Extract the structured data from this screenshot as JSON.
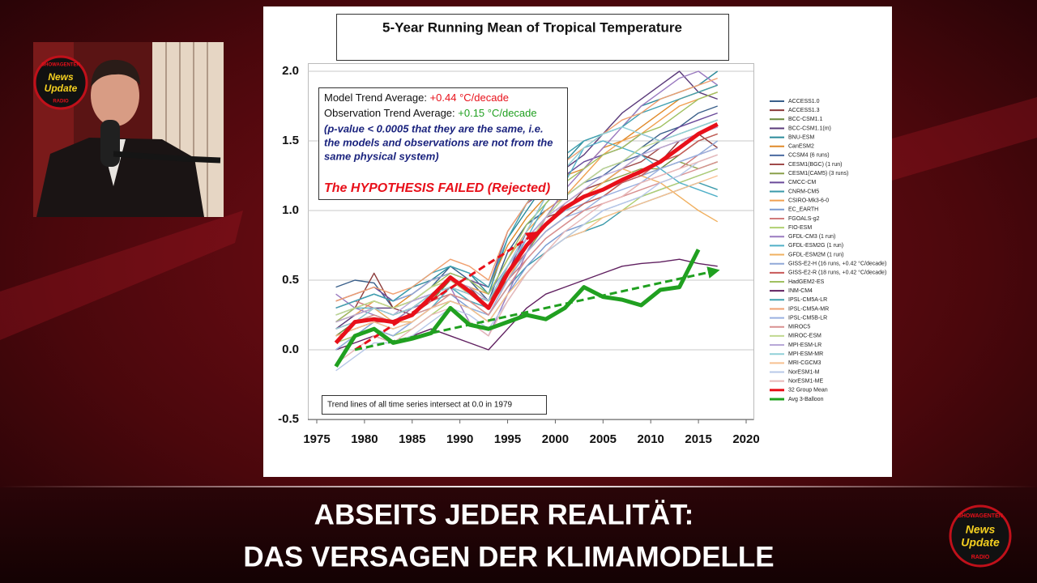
{
  "chart_data": {
    "type": "line",
    "title": "5-Year Running Mean of Tropical Temperature",
    "annotations": {
      "model_label": "Model Trend Average:",
      "model_value": "+0.44 °C/decade",
      "obs_label": "Observation Trend Average:",
      "obs_value": "+0.15 °C/decade",
      "note": [
        "(p-value < 0.0005 that they are the same, i.e.",
        "the models and observations are not from the",
        "same physical system)"
      ],
      "verdict": "The HYPOTHESIS FAILED (Rejected)",
      "footnote": "Trend lines of all time series intersect at 0.0 in 1979"
    },
    "xlim": [
      1975,
      2020
    ],
    "xticks": [
      1975,
      1980,
      1985,
      1990,
      1995,
      2000,
      2005,
      2010,
      2015,
      2020
    ],
    "ylim": [
      -0.5,
      2.0
    ],
    "yticks": [
      -0.5,
      {
        "value": 0,
        "label": "0.0"
      },
      0.5,
      {
        "value": 1,
        "label": "1.0"
      },
      1.5,
      {
        "value": 2,
        "label": "2.0"
      }
    ],
    "grid": true,
    "legend": "right",
    "x": [
      1977,
      1979,
      1981,
      1983,
      1985,
      1987,
      1989,
      1991,
      1993,
      1995,
      1997,
      1999,
      2001,
      2003,
      2005,
      2007,
      2009,
      2011,
      2013,
      2015,
      2017
    ],
    "series": [
      {
        "name": "ACCESS1.0",
        "color": "#3a5f8a",
        "values": [
          0.45,
          0.5,
          0.48,
          0.3,
          0.35,
          0.45,
          0.6,
          0.5,
          0.35,
          0.7,
          0.9,
          1.0,
          1.1,
          1.2,
          1.3,
          1.35,
          1.45,
          1.55,
          1.6,
          1.7,
          1.75
        ]
      },
      {
        "name": "ACCESS1.3",
        "color": "#8b3a3a",
        "values": [
          0.2,
          0.3,
          0.55,
          0.3,
          0.25,
          0.4,
          0.5,
          0.45,
          0.3,
          0.6,
          0.8,
          0.95,
          1.0,
          1.15,
          1.2,
          1.3,
          1.4,
          1.35,
          1.5,
          1.55,
          1.45
        ]
      },
      {
        "name": "BCC-CSM1.1",
        "color": "#6a8a3a",
        "values": [
          0.1,
          0.2,
          0.25,
          0.2,
          0.3,
          0.35,
          0.5,
          0.45,
          0.35,
          0.5,
          0.7,
          0.85,
          0.95,
          1.05,
          1.1,
          1.2,
          1.25,
          1.3,
          1.4,
          1.5,
          1.55
        ]
      },
      {
        "name": "BCC-CSM1.1(m)",
        "color": "#5a3a7a",
        "values": [
          0.15,
          0.25,
          0.3,
          0.3,
          0.35,
          0.4,
          0.45,
          0.35,
          0.3,
          0.55,
          0.85,
          1.1,
          1.3,
          1.4,
          1.55,
          1.7,
          1.8,
          1.9,
          2.0,
          1.85,
          1.8
        ]
      },
      {
        "name": "BNU-ESM",
        "color": "#2a8a9a",
        "values": [
          0.3,
          0.35,
          0.4,
          0.35,
          0.45,
          0.5,
          0.6,
          0.55,
          0.4,
          0.8,
          1.0,
          1.2,
          1.35,
          1.5,
          1.55,
          1.6,
          1.75,
          1.8,
          1.85,
          1.9,
          2.0
        ]
      },
      {
        "name": "CanESM2",
        "color": "#e08a2a",
        "values": [
          0.25,
          0.3,
          0.35,
          0.3,
          0.4,
          0.5,
          0.55,
          0.5,
          0.45,
          0.75,
          0.95,
          1.1,
          1.25,
          1.3,
          1.45,
          1.5,
          1.6,
          1.7,
          1.8,
          1.85,
          1.9
        ]
      },
      {
        "name": "CCSM4 (6 runs)",
        "color": "#4a6aa0",
        "values": [
          0.2,
          0.25,
          0.3,
          0.25,
          0.3,
          0.4,
          0.45,
          0.4,
          0.35,
          0.6,
          0.8,
          0.95,
          1.1,
          1.2,
          1.25,
          1.35,
          1.4,
          1.5,
          1.55,
          1.6,
          1.65
        ]
      },
      {
        "name": "CESM1(BGC) (1 run)",
        "color": "#a04a4a",
        "values": [
          0.15,
          0.2,
          0.3,
          0.25,
          0.3,
          0.4,
          0.5,
          0.4,
          0.35,
          0.55,
          0.75,
          0.9,
          1.05,
          1.15,
          1.2,
          1.3,
          1.35,
          1.45,
          1.5,
          1.55,
          1.6
        ]
      },
      {
        "name": "CESM1(CAM5) (3 runs)",
        "color": "#8aa04a",
        "values": [
          0.1,
          0.15,
          0.2,
          0.2,
          0.25,
          0.35,
          0.45,
          0.35,
          0.3,
          0.5,
          0.7,
          0.9,
          1.0,
          1.1,
          1.2,
          1.25,
          1.3,
          1.3,
          1.35,
          1.3,
          1.35
        ]
      },
      {
        "name": "CMCC-CM",
        "color": "#6a4a9a",
        "values": [
          0.35,
          0.4,
          0.45,
          0.35,
          0.4,
          0.5,
          0.55,
          0.5,
          0.45,
          0.85,
          1.05,
          1.15,
          1.25,
          1.35,
          1.4,
          1.45,
          1.55,
          1.5,
          1.6,
          1.65,
          1.7
        ]
      },
      {
        "name": "CNRM-CM5",
        "color": "#3a9aaa",
        "values": [
          0.0,
          0.1,
          0.15,
          0.1,
          0.2,
          0.3,
          0.35,
          0.3,
          0.25,
          0.45,
          0.6,
          0.7,
          0.8,
          0.85,
          0.9,
          1.0,
          1.05,
          1.1,
          1.15,
          1.2,
          1.15
        ]
      },
      {
        "name": "CSIRO-Mk3-6-0",
        "color": "#f0a050",
        "values": [
          0.2,
          0.25,
          0.35,
          0.3,
          0.35,
          0.45,
          0.5,
          0.45,
          0.4,
          0.65,
          0.85,
          1.0,
          1.1,
          1.25,
          1.4,
          1.5,
          1.55,
          1.65,
          1.75,
          1.8,
          1.85
        ]
      },
      {
        "name": "EC_EARTH",
        "color": "#7a9ad0",
        "values": [
          0.05,
          0.1,
          0.2,
          0.15,
          0.2,
          0.3,
          0.4,
          0.3,
          0.2,
          0.4,
          0.6,
          0.75,
          0.85,
          0.9,
          1.0,
          1.05,
          1.1,
          1.15,
          1.2,
          1.25,
          1.3
        ]
      },
      {
        "name": "FGOALS-g2",
        "color": "#d07a7a",
        "values": [
          0.3,
          0.35,
          0.3,
          0.25,
          0.3,
          0.35,
          0.4,
          0.35,
          0.3,
          0.5,
          0.65,
          0.8,
          0.9,
          1.0,
          1.05,
          1.1,
          1.2,
          1.25,
          1.3,
          1.4,
          1.45
        ]
      },
      {
        "name": "FIO-ESM",
        "color": "#b0d070",
        "values": [
          0.05,
          0.1,
          0.15,
          0.1,
          0.15,
          0.25,
          0.35,
          0.3,
          0.2,
          0.4,
          0.55,
          0.7,
          0.8,
          0.9,
          0.95,
          1.0,
          1.1,
          1.15,
          1.2,
          1.25,
          1.3
        ]
      },
      {
        "name": "GFDL-CM3 (1 run)",
        "color": "#9a7ac0",
        "values": [
          0.4,
          0.3,
          0.25,
          0.2,
          0.3,
          0.35,
          0.45,
          0.2,
          0.1,
          0.4,
          0.7,
          0.95,
          1.15,
          1.3,
          1.45,
          1.6,
          1.75,
          1.85,
          1.95,
          2.0,
          1.9
        ]
      },
      {
        "name": "GFDL-ESM2G (1 run)",
        "color": "#50b0c8",
        "values": [
          0.25,
          0.3,
          0.3,
          0.2,
          0.25,
          0.3,
          0.45,
          0.35,
          0.3,
          0.55,
          0.8,
          1.05,
          1.2,
          1.45,
          1.5,
          1.45,
          1.4,
          1.3,
          1.2,
          1.15,
          1.1
        ]
      },
      {
        "name": "GFDL-ESM2M (1 run)",
        "color": "#f0b060",
        "values": [
          0.2,
          0.25,
          0.3,
          0.2,
          0.2,
          0.3,
          0.4,
          0.35,
          0.25,
          0.5,
          0.75,
          0.9,
          1.0,
          1.1,
          1.2,
          1.3,
          1.25,
          1.2,
          1.1,
          1.0,
          0.92
        ]
      },
      {
        "name": "GISS-E2-H (16 runs, +0.42 °C/decade)",
        "color": "#90a8d8",
        "values": [
          0.3,
          0.35,
          0.4,
          0.35,
          0.4,
          0.5,
          0.55,
          0.5,
          0.4,
          0.6,
          0.8,
          0.9,
          1.0,
          1.05,
          1.15,
          1.2,
          1.25,
          1.3,
          1.35,
          1.4,
          1.5
        ]
      },
      {
        "name": "GISS-E2-R (18 runs, +0.42 °C/decade)",
        "color": "#c85858",
        "values": [
          0.1,
          0.15,
          0.2,
          0.2,
          0.25,
          0.35,
          0.45,
          0.4,
          0.35,
          0.55,
          0.7,
          0.85,
          0.95,
          1.05,
          1.1,
          1.2,
          1.25,
          1.35,
          1.4,
          1.5,
          1.55
        ]
      },
      {
        "name": "HadGEM2-ES",
        "color": "#a0c060",
        "values": [
          0.2,
          0.3,
          0.35,
          0.3,
          0.35,
          0.45,
          0.55,
          0.5,
          0.4,
          0.65,
          0.9,
          1.05,
          1.2,
          1.3,
          1.4,
          1.45,
          1.55,
          1.6,
          1.7,
          1.8,
          1.85
        ]
      },
      {
        "name": "INM-CM4",
        "color": "#602060",
        "values": [
          0.0,
          0.05,
          0.1,
          0.05,
          0.1,
          0.15,
          0.1,
          0.05,
          0.0,
          0.15,
          0.3,
          0.4,
          0.45,
          0.5,
          0.55,
          0.6,
          0.62,
          0.63,
          0.65,
          0.62,
          0.6
        ]
      },
      {
        "name": "IPSL-CM5A-LR",
        "color": "#40a0b0",
        "values": [
          0.3,
          0.35,
          0.4,
          0.35,
          0.45,
          0.55,
          0.6,
          0.55,
          0.45,
          0.8,
          1.05,
          1.25,
          1.4,
          1.5,
          1.55,
          1.6,
          1.7,
          1.75,
          1.8,
          1.85,
          1.9
        ]
      },
      {
        "name": "IPSL-CM5A-MR",
        "color": "#f0a070",
        "values": [
          0.35,
          0.4,
          0.45,
          0.4,
          0.45,
          0.55,
          0.65,
          0.6,
          0.5,
          0.85,
          1.05,
          1.2,
          1.35,
          1.45,
          1.55,
          1.65,
          1.7,
          1.8,
          1.85,
          1.9,
          1.95
        ]
      },
      {
        "name": "IPSL-CM5B-LR",
        "color": "#9ab0e0",
        "values": [
          0.0,
          0.1,
          0.15,
          0.1,
          0.2,
          0.3,
          0.35,
          0.3,
          0.25,
          0.5,
          0.7,
          0.85,
          0.95,
          1.0,
          1.1,
          1.15,
          1.2,
          1.3,
          1.35,
          1.4,
          1.45
        ]
      },
      {
        "name": "MIROC5",
        "color": "#d89090",
        "values": [
          0.15,
          0.2,
          0.25,
          0.2,
          0.25,
          0.3,
          0.4,
          0.35,
          0.25,
          0.45,
          0.65,
          0.8,
          0.9,
          1.0,
          1.05,
          1.1,
          1.15,
          1.2,
          1.25,
          1.3,
          1.35
        ]
      },
      {
        "name": "MIROC-ESM",
        "color": "#c0d890",
        "values": [
          0.25,
          0.3,
          0.35,
          0.3,
          0.35,
          0.45,
          0.5,
          0.4,
          0.3,
          0.55,
          0.75,
          0.95,
          1.1,
          1.2,
          1.3,
          1.35,
          1.45,
          1.5,
          1.55,
          1.6,
          1.65
        ]
      },
      {
        "name": "MPI-ESM-LR",
        "color": "#b8a8d8",
        "values": [
          0.2,
          0.25,
          0.3,
          0.25,
          0.35,
          0.4,
          0.5,
          0.45,
          0.35,
          0.6,
          0.8,
          0.95,
          1.05,
          1.15,
          1.25,
          1.3,
          1.4,
          1.45,
          1.5,
          1.55,
          1.6
        ]
      },
      {
        "name": "MPI-ESM-MR",
        "color": "#90d0d8",
        "values": [
          0.15,
          0.2,
          0.3,
          0.25,
          0.3,
          0.4,
          0.45,
          0.4,
          0.35,
          0.6,
          0.85,
          1.1,
          1.3,
          1.45,
          1.55,
          1.6,
          1.55,
          1.5,
          1.55,
          1.6,
          1.65
        ]
      },
      {
        "name": "MRI-CGCM3",
        "color": "#f8c090",
        "values": [
          0.1,
          0.15,
          0.2,
          0.15,
          0.2,
          0.3,
          0.35,
          0.3,
          0.2,
          0.4,
          0.55,
          0.7,
          0.8,
          0.85,
          0.95,
          1.0,
          1.05,
          1.1,
          1.15,
          1.2,
          1.25
        ]
      },
      {
        "name": "NorESM1-M",
        "color": "#b8c8e8",
        "values": [
          -0.15,
          -0.05,
          0.05,
          0.05,
          0.1,
          0.2,
          0.3,
          0.25,
          0.15,
          0.35,
          0.55,
          0.7,
          0.8,
          0.9,
          1.0,
          1.05,
          1.1,
          1.2,
          1.25,
          1.35,
          1.4
        ]
      },
      {
        "name": "NorESM1-ME",
        "color": "#e8b8b8",
        "values": [
          -0.1,
          0.0,
          0.1,
          0.05,
          0.15,
          0.25,
          0.3,
          0.2,
          0.1,
          0.35,
          0.55,
          0.7,
          0.85,
          0.95,
          1.05,
          1.1,
          1.2,
          1.25,
          1.3,
          1.35,
          1.4
        ]
      },
      {
        "name": "32 Group Mean",
        "color": "#e8101a",
        "values": [
          0.05,
          0.2,
          0.22,
          0.2,
          0.25,
          0.38,
          0.52,
          0.42,
          0.3,
          0.55,
          0.75,
          0.9,
          1.02,
          1.1,
          1.15,
          1.22,
          1.28,
          1.35,
          1.45,
          1.55,
          1.62
        ]
      },
      {
        "name": "Avg 3-Balloon",
        "color": "#20a020",
        "values": [
          -0.12,
          0.1,
          0.15,
          0.05,
          0.08,
          0.12,
          0.3,
          0.18,
          0.15,
          0.2,
          0.25,
          0.22,
          0.3,
          0.45,
          0.38,
          0.36,
          0.32,
          0.43,
          0.45,
          0.72,
          null
        ]
      }
    ],
    "trend_lines": [
      {
        "color": "#e8101a",
        "x": [
          1979,
          1998
        ],
        "values": [
          0,
          0.84
        ]
      },
      {
        "color": "#20a020",
        "x": [
          1979,
          2017
        ],
        "values": [
          0,
          0.57
        ]
      }
    ]
  },
  "caption": {
    "lines": [
      "ABSEITS JEDER REALITÄT:",
      "DAS VERSAGEN DER KLIMAMODELLE"
    ]
  },
  "logo": {
    "top": "SHOWAGENTEN",
    "main": [
      "News",
      "Update"
    ],
    "bottom": "RADIO"
  }
}
